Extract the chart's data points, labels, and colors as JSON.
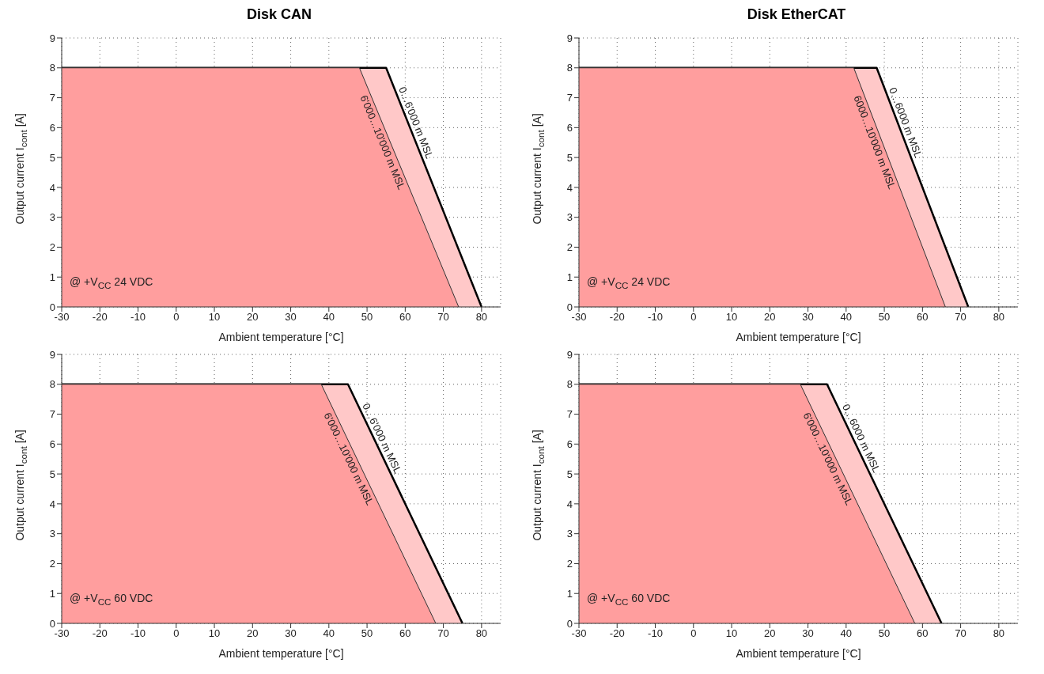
{
  "chart_data": [
    {
      "type": "area",
      "title": "Disk CAN",
      "xlabel": "Ambient temperature [°C]",
      "ylabel": "Output current I$_{cont}$ [A]",
      "annotations": [
        "@ +V$_{CC}$ 24 VDC"
      ],
      "xlim": [
        -30,
        85
      ],
      "ylim": [
        0,
        9
      ],
      "xticks": [
        -30,
        -20,
        -10,
        0,
        10,
        20,
        30,
        40,
        50,
        60,
        70,
        80
      ],
      "yticks": [
        0,
        1,
        2,
        3,
        4,
        5,
        6,
        7,
        8,
        9
      ],
      "grid": true,
      "series": [
        {
          "name": "0…6'000 m MSL",
          "color": "#ffc8c8",
          "x": [
            -30,
            55,
            80
          ],
          "values": [
            8,
            8,
            0
          ]
        },
        {
          "name": "6'000…10'000 m MSL",
          "color": "#ff9e9e",
          "x": [
            -30,
            48,
            74
          ],
          "values": [
            8,
            8,
            0
          ]
        }
      ]
    },
    {
      "type": "area",
      "title": "Disk EtherCAT",
      "xlabel": "Ambient temperature [°C]",
      "ylabel": "Output current I$_{cont}$ [A]",
      "annotations": [
        "@ +V$_{CC}$ 24 VDC"
      ],
      "xlim": [
        -30,
        85
      ],
      "ylim": [
        0,
        9
      ],
      "xticks": [
        -30,
        -20,
        -10,
        0,
        10,
        20,
        30,
        40,
        50,
        60,
        70,
        80
      ],
      "yticks": [
        0,
        1,
        2,
        3,
        4,
        5,
        6,
        7,
        8,
        9
      ],
      "grid": true,
      "series": [
        {
          "name": "0…6000 m MSL",
          "color": "#ffc8c8",
          "x": [
            -30,
            48,
            72
          ],
          "values": [
            8,
            8,
            0
          ]
        },
        {
          "name": "6000…10'000 m MSL",
          "color": "#ff9e9e",
          "x": [
            -30,
            42,
            66
          ],
          "values": [
            8,
            8,
            0
          ]
        }
      ]
    },
    {
      "type": "area",
      "xlabel": "Ambient temperature [°C]",
      "ylabel": "Output current I$_{cont}$ [A]",
      "annotations": [
        "@ +V$_{CC}$ 60 VDC"
      ],
      "xlim": [
        -30,
        85
      ],
      "ylim": [
        0,
        9
      ],
      "xticks": [
        -30,
        -20,
        -10,
        0,
        10,
        20,
        30,
        40,
        50,
        60,
        70,
        80
      ],
      "yticks": [
        0,
        1,
        2,
        3,
        4,
        5,
        6,
        7,
        8,
        9
      ],
      "grid": true,
      "series": [
        {
          "name": "0…6'000 m MSL",
          "color": "#ffc8c8",
          "x": [
            -30,
            45,
            75
          ],
          "values": [
            8,
            8,
            0
          ]
        },
        {
          "name": "6'000…10'000 m MSL",
          "color": "#ff9e9e",
          "x": [
            -30,
            38,
            68
          ],
          "values": [
            8,
            8,
            0
          ]
        }
      ]
    },
    {
      "type": "area",
      "xlabel": "Ambient temperature [°C]",
      "ylabel": "Output current I$_{cont}$ [A]",
      "annotations": [
        "@ +V$_{CC}$ 60 VDC"
      ],
      "xlim": [
        -30,
        85
      ],
      "ylim": [
        0,
        9
      ],
      "xticks": [
        -30,
        -20,
        -10,
        0,
        10,
        20,
        30,
        40,
        50,
        60,
        70,
        80
      ],
      "yticks": [
        0,
        1,
        2,
        3,
        4,
        5,
        6,
        7,
        8,
        9
      ],
      "grid": true,
      "series": [
        {
          "name": "0…6000 m MSL",
          "color": "#ffc8c8",
          "x": [
            -30,
            35,
            65
          ],
          "values": [
            8,
            8,
            0
          ]
        },
        {
          "name": "6'000…10'000 m MSL",
          "color": "#ff9e9e",
          "x": [
            -30,
            28,
            58
          ],
          "values": [
            8,
            8,
            0
          ]
        }
      ]
    }
  ]
}
